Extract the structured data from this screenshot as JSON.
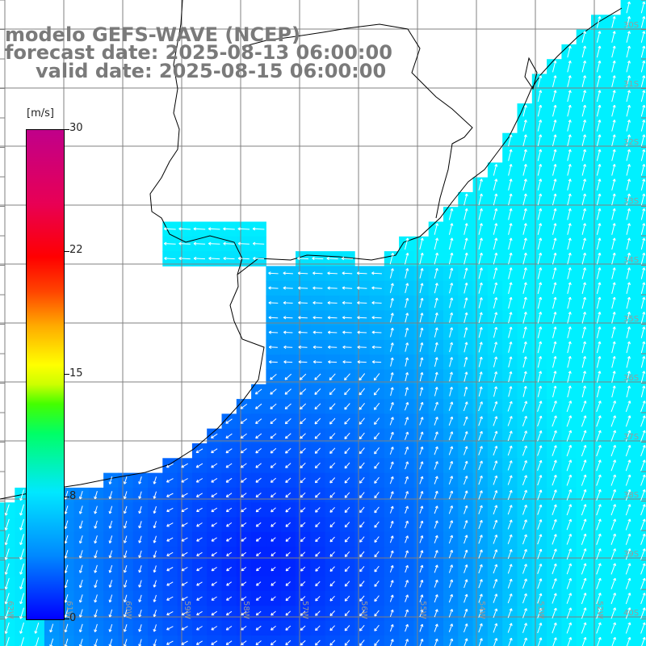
{
  "title": {
    "line1": "modelo GEFS-WAVE (NCEP)",
    "line2": "forecast date: 2025-08-13 06:00:00",
    "line3": "valid date: 2025-08-15 06:00:00"
  },
  "colorbar": {
    "unit": "[m/s]",
    "min": 0,
    "max": 30,
    "tick_labels": [
      "30",
      "22",
      "15",
      "8",
      "0"
    ],
    "tick_values": [
      30,
      22,
      15,
      8,
      0
    ],
    "colors": [
      "#0000ff",
      "#0088ff",
      "#00e8ff",
      "#00ff66",
      "#ccff00",
      "#ffff00",
      "#ff6600",
      "#ff0000",
      "#c0008a"
    ]
  },
  "map": {
    "lat_labels": [
      "30S",
      "31S",
      "32S",
      "33S",
      "34S",
      "35S",
      "36S",
      "37S",
      "38S",
      "39S",
      "40S",
      "41S"
    ],
    "lon_labels": [
      "62W",
      "61W",
      "60W",
      "59W",
      "58W",
      "57W",
      "56W",
      "55W",
      "54W",
      "53W",
      "52W",
      "51W"
    ],
    "land_color": "#ffffff",
    "grid_color": "#808080",
    "coast_color": "#000000",
    "arrow_color": "#ffffff"
  }
}
